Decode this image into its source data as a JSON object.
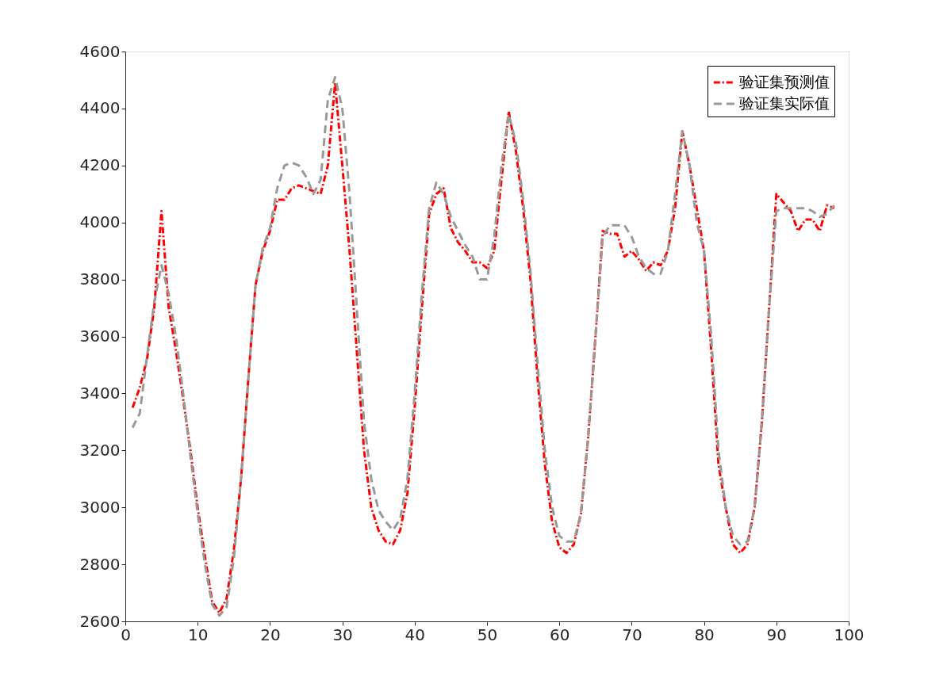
{
  "chart_data": {
    "type": "line",
    "xlim": [
      0,
      100
    ],
    "xticks": [
      0,
      10,
      20,
      30,
      40,
      50,
      60,
      70,
      80,
      90,
      100
    ],
    "ylim": [
      2600,
      4600
    ],
    "yticks": [
      2600,
      2800,
      3000,
      3200,
      3400,
      3600,
      3800,
      4000,
      4200,
      4400,
      4600
    ],
    "grid": false,
    "legend": "top right",
    "marker": "none",
    "x": [
      1,
      2,
      3,
      4,
      5,
      6,
      7,
      8,
      9,
      10,
      11,
      12,
      13,
      14,
      15,
      16,
      17,
      18,
      19,
      20,
      21,
      22,
      23,
      24,
      25,
      26,
      27,
      28,
      29,
      30,
      31,
      32,
      33,
      34,
      35,
      36,
      37,
      38,
      39,
      40,
      41,
      42,
      43,
      44,
      45,
      46,
      47,
      48,
      49,
      50,
      51,
      52,
      53,
      54,
      55,
      56,
      57,
      58,
      59,
      60,
      61,
      62,
      63,
      64,
      65,
      66,
      67,
      68,
      69,
      70,
      71,
      72,
      73,
      74,
      75,
      76,
      77,
      78,
      79,
      80,
      81,
      82,
      83,
      84,
      85,
      86,
      87,
      88,
      89,
      90,
      91,
      92,
      93,
      94,
      95,
      96,
      97,
      98
    ],
    "series": [
      {
        "name": "验证集预测值",
        "color": "#ff0000",
        "line_style": "dashdot",
        "values": [
          3350,
          3420,
          3520,
          3700,
          4040,
          3700,
          3550,
          3380,
          3200,
          3000,
          2830,
          2670,
          2630,
          2680,
          2850,
          3100,
          3450,
          3780,
          3900,
          3970,
          4080,
          4080,
          4120,
          4130,
          4120,
          4110,
          4100,
          4200,
          4490,
          4200,
          3900,
          3550,
          3200,
          3000,
          2920,
          2880,
          2870,
          2920,
          3050,
          3350,
          3700,
          4030,
          4100,
          4120,
          3980,
          3930,
          3900,
          3860,
          3860,
          3840,
          3900,
          4150,
          4390,
          4250,
          4050,
          3800,
          3450,
          3150,
          2950,
          2860,
          2840,
          2870,
          2980,
          3250,
          3600,
          3970,
          3960,
          3960,
          3880,
          3900,
          3870,
          3830,
          3860,
          3850,
          3900,
          4050,
          4320,
          4200,
          4050,
          3900,
          3550,
          3150,
          3000,
          2870,
          2840,
          2870,
          3000,
          3300,
          3700,
          4100,
          4070,
          4040,
          3970,
          4010,
          4010,
          3970,
          4060,
          4050
        ]
      },
      {
        "name": "验证集实际值",
        "color": "#999999",
        "line_style": "dashed",
        "values": [
          3280,
          3330,
          3530,
          3720,
          3850,
          3750,
          3600,
          3400,
          3180,
          2980,
          2800,
          2660,
          2620,
          2650,
          2820,
          3100,
          3450,
          3780,
          3910,
          3980,
          4120,
          4200,
          4210,
          4200,
          4160,
          4100,
          4150,
          4430,
          4510,
          4400,
          4100,
          3700,
          3300,
          3100,
          2990,
          2950,
          2920,
          2960,
          3100,
          3400,
          3750,
          4050,
          4140,
          4100,
          4020,
          3970,
          3920,
          3880,
          3800,
          3800,
          3950,
          4200,
          4380,
          4280,
          4080,
          3830,
          3500,
          3200,
          3000,
          2900,
          2880,
          2880,
          2980,
          3250,
          3600,
          3950,
          3990,
          3990,
          3990,
          3950,
          3880,
          3840,
          3820,
          3820,
          3900,
          4100,
          4320,
          4200,
          4000,
          3900,
          3600,
          3200,
          3000,
          2900,
          2870,
          2880,
          3000,
          3300,
          3700,
          4040,
          4050,
          4050,
          4050,
          4050,
          4040,
          4020,
          4030,
          4060
        ]
      }
    ]
  }
}
